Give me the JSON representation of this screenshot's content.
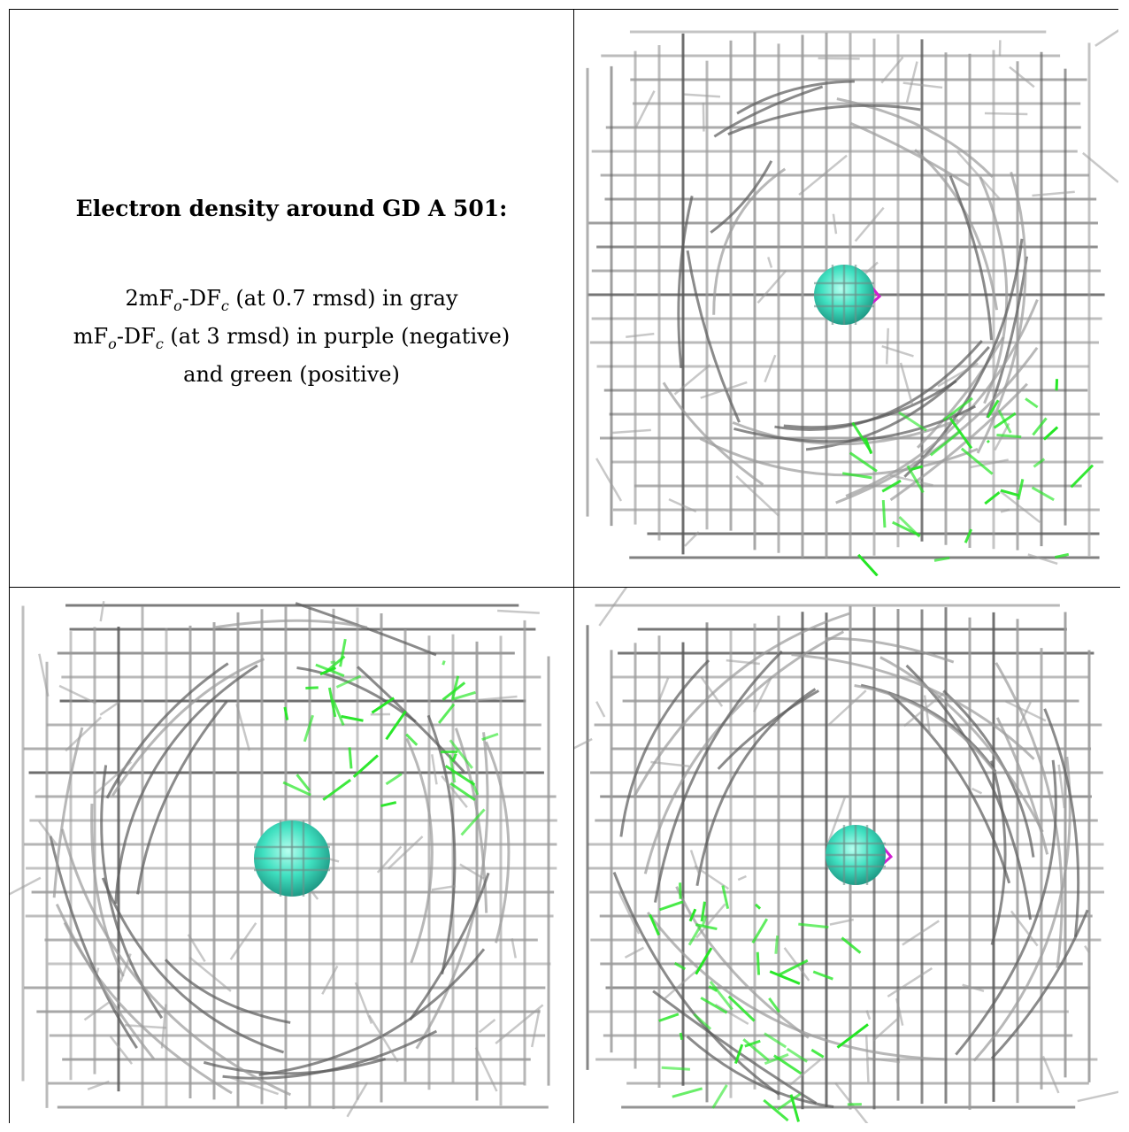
{
  "panel_text": {
    "title": "Electron density around GD A 501:",
    "line1_pre": "2mF",
    "line1_sub_o": "o",
    "line1_mid": "-DF",
    "line1_sub_c": "c",
    "line1_post": " (at 0.7 rmsd) in gray",
    "line2_pre": "mF",
    "line2_sub_o": "o",
    "line2_mid": "-DF",
    "line2_sub_c": "c",
    "line2_post": " (at 3 rmsd) in purple (negative)",
    "line3": "and green (positive)"
  },
  "colors": {
    "density_gray": "#9a9a9a",
    "density_dark": "#5a5a5a",
    "positive_green": "#22e622",
    "negative_purple": "#d21ed2",
    "atom": "#3fe0c0"
  },
  "views": [
    "view-top-right",
    "view-bottom-left",
    "view-bottom-right"
  ]
}
